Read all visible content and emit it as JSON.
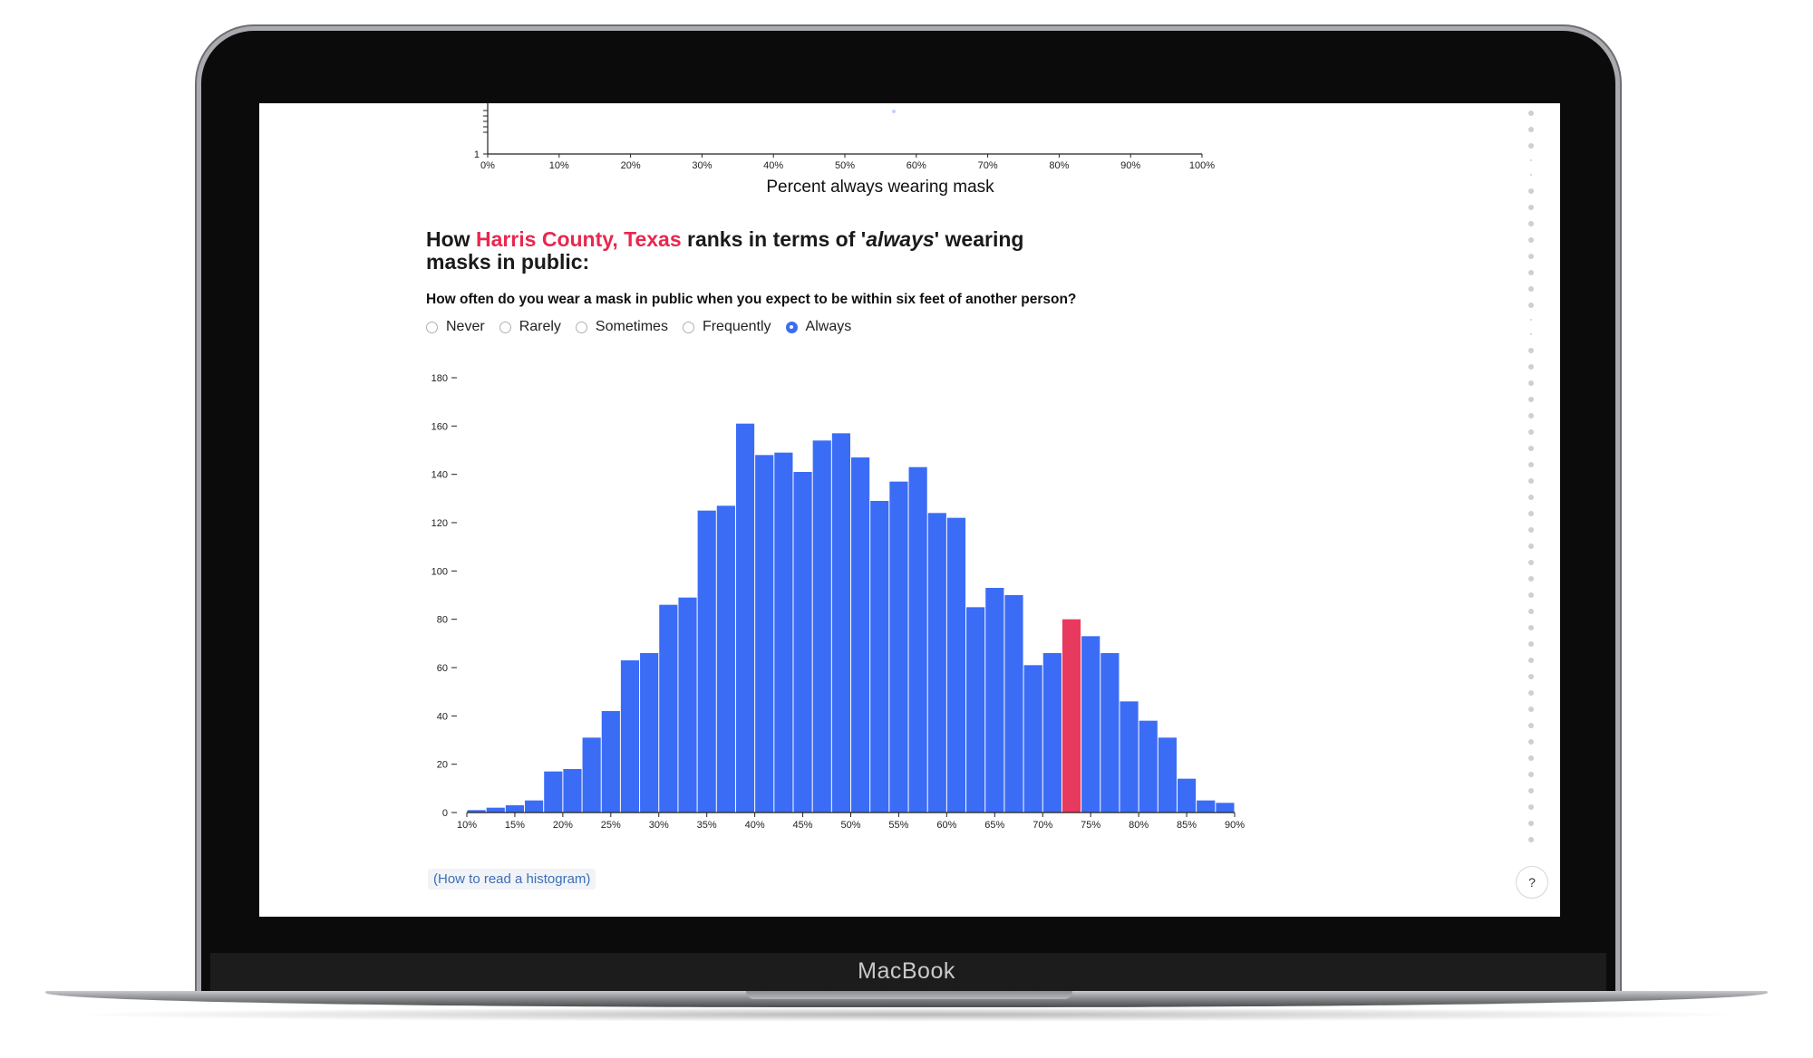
{
  "device": {
    "brand": "MacBook"
  },
  "top_chart": {
    "x_axis_title": "Percent always wearing mask",
    "x_ticks": [
      "0%",
      "10%",
      "20%",
      "30%",
      "40%",
      "50%",
      "60%",
      "70%",
      "80%",
      "90%",
      "100%"
    ],
    "y_ticks": [
      "1"
    ]
  },
  "section": {
    "title_prefix": "How ",
    "title_county": "Harris County, Texas",
    "title_mid": " ranks in terms of '",
    "title_emphasis": "always",
    "title_suffix": "' wearing masks in public:",
    "question": "How often do you wear a mask in public when you expect to be within six feet of another person?",
    "options": [
      {
        "label": "Never",
        "selected": false
      },
      {
        "label": "Rarely",
        "selected": false
      },
      {
        "label": "Sometimes",
        "selected": false
      },
      {
        "label": "Frequently",
        "selected": false
      },
      {
        "label": "Always",
        "selected": true
      }
    ],
    "help_link": "(How to read a histogram)",
    "help_button": "?"
  },
  "colors": {
    "bar": "#3b6cf5",
    "highlight": "#e83a5f",
    "accent": "#e8284f"
  },
  "chart_data": {
    "type": "bar",
    "title": "",
    "xlabel": "",
    "ylabel": "",
    "x_domain": [
      10,
      90
    ],
    "ylim": [
      0,
      180
    ],
    "y_ticks": [
      0,
      20,
      40,
      60,
      80,
      100,
      120,
      140,
      160,
      180
    ],
    "x_ticks": [
      "10%",
      "15%",
      "20%",
      "25%",
      "30%",
      "35%",
      "40%",
      "45%",
      "50%",
      "55%",
      "60%",
      "65%",
      "70%",
      "75%",
      "80%",
      "85%",
      "90%"
    ],
    "bin_width": 2,
    "bin_starts": [
      10,
      12,
      14,
      16,
      18,
      20,
      22,
      24,
      26,
      28,
      30,
      32,
      34,
      36,
      38,
      40,
      42,
      44,
      46,
      48,
      50,
      52,
      54,
      56,
      58,
      60,
      62,
      64,
      66,
      68,
      70,
      72,
      74,
      76,
      78,
      80,
      82,
      84,
      86,
      88
    ],
    "values": [
      1,
      2,
      3,
      5,
      17,
      18,
      31,
      42,
      63,
      66,
      86,
      89,
      125,
      127,
      161,
      148,
      149,
      141,
      154,
      157,
      147,
      129,
      137,
      143,
      124,
      122,
      85,
      93,
      90,
      61,
      66,
      80,
      73,
      66,
      46,
      38,
      31,
      14,
      5,
      4
    ],
    "highlight_bin_start": 72,
    "highlight_label": "Harris County, Texas",
    "grid": false
  }
}
